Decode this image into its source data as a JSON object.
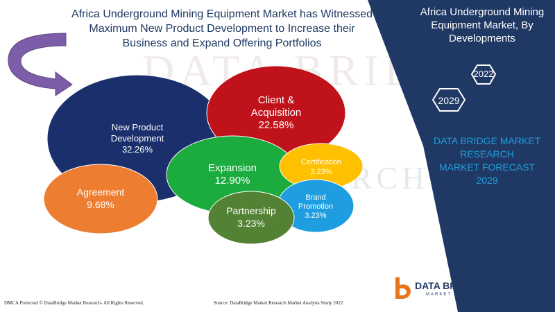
{
  "header": {
    "title_line1": "Africa Underground Mining Equipment Market has Witnessed",
    "title_line2": "Maximum New Product Development to Increase their",
    "title_line3": "Business and Expand Offering Portfolios"
  },
  "side_panel": {
    "title_line1": "Africa Underground Mining",
    "title_line2": "Equipment Market, By",
    "title_line3": "Developments",
    "year_a": "2022",
    "year_b": "2029",
    "forecast_line1": "DATA BRIDGE MARKET",
    "forecast_line2": "RESEARCH",
    "forecast_line3": "MARKET FORECAST",
    "forecast_line4": "2029"
  },
  "watermark": {
    "line1": "DATA BRIDGE",
    "line2": "RESEARCH"
  },
  "footer": {
    "left": "DMCA Protected © DataBridge Market Research- All Rights Reserved.",
    "source": "Source: DataBridge Market Research Market Analysis Study 2022"
  },
  "logo": {
    "name": "DATA BRIDGE",
    "tagline": "MARKET RESEARCH"
  },
  "colors": {
    "panel": "#1f3864",
    "accent_blue": "#1f9fdc",
    "arrow": "#7b5ea7"
  },
  "chart_data": {
    "type": "bubble",
    "series": [
      {
        "name": "New Product Development",
        "label_lines": [
          "New Product",
          "Development",
          "32.26%"
        ],
        "value": 32.26,
        "color": "#1a2f6b"
      },
      {
        "name": "Client & Acquisition",
        "label_lines": [
          "Client &",
          "Acquisition",
          "22.58%"
        ],
        "value": 22.58,
        "color": "#c0121b"
      },
      {
        "name": "Expansion",
        "label_lines": [
          "Expansion",
          "12.90%"
        ],
        "value": 12.9,
        "color": "#1cab3e"
      },
      {
        "name": "Agreement",
        "label_lines": [
          "Agreement",
          "9.68%"
        ],
        "value": 9.68,
        "color": "#ed7d31"
      },
      {
        "name": "Certification",
        "label_lines": [
          "Certification",
          "3.23%"
        ],
        "value": 3.23,
        "color": "#ffc000"
      },
      {
        "name": "Brand Promotion",
        "label_lines": [
          "Brand",
          "Promotion",
          "3.23%"
        ],
        "value": 3.23,
        "color": "#1e9ee0"
      },
      {
        "name": "Partnership",
        "label_lines": [
          "Partnership",
          "3.23%"
        ],
        "value": 3.23,
        "color": "#548235"
      }
    ]
  }
}
